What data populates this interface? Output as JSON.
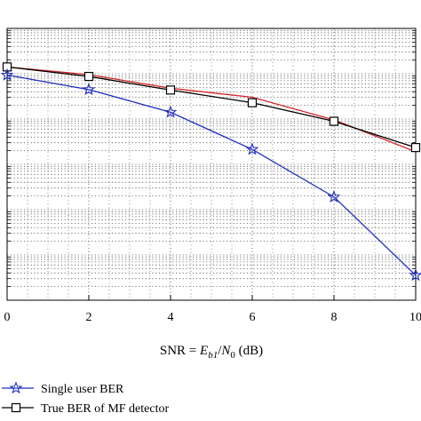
{
  "chart_data": {
    "type": "line",
    "title": "",
    "xlabel": {
      "prefix": "SNR = ",
      "E": "E",
      "E_sub": "b1",
      "slash": "/",
      "N": "N",
      "N_sub": "0",
      "suffix": " (dB)"
    },
    "ylabel": "",
    "x": [
      0,
      2,
      4,
      6,
      8,
      10
    ],
    "xticks": [
      "0",
      "2",
      "4",
      "6",
      "8",
      "10"
    ],
    "xlim": [
      0,
      10
    ],
    "ylim": [
      -6,
      0
    ],
    "yscale": "log",
    "grid": true,
    "legend_position": "bottom-left",
    "series": [
      {
        "name": "",
        "color": "#d62728",
        "marker": "none",
        "values": [
          -0.85,
          -1.02,
          -1.32,
          -1.52,
          -2.02,
          -2.72
        ]
      },
      {
        "name": "True BER of MF detector",
        "color": "#000000",
        "marker": "square",
        "values": [
          -0.85,
          -1.06,
          -1.36,
          -1.64,
          -2.05,
          -2.63
        ]
      },
      {
        "name": "Single user BER",
        "color": "#1f2fbf",
        "marker": "star",
        "values": [
          -1.03,
          -1.35,
          -1.85,
          -2.67,
          -3.72,
          -5.45
        ]
      }
    ],
    "legend": [
      {
        "label": "Single user BER",
        "series": 2
      },
      {
        "label": "True BER of MF detector",
        "series": 1
      }
    ]
  }
}
